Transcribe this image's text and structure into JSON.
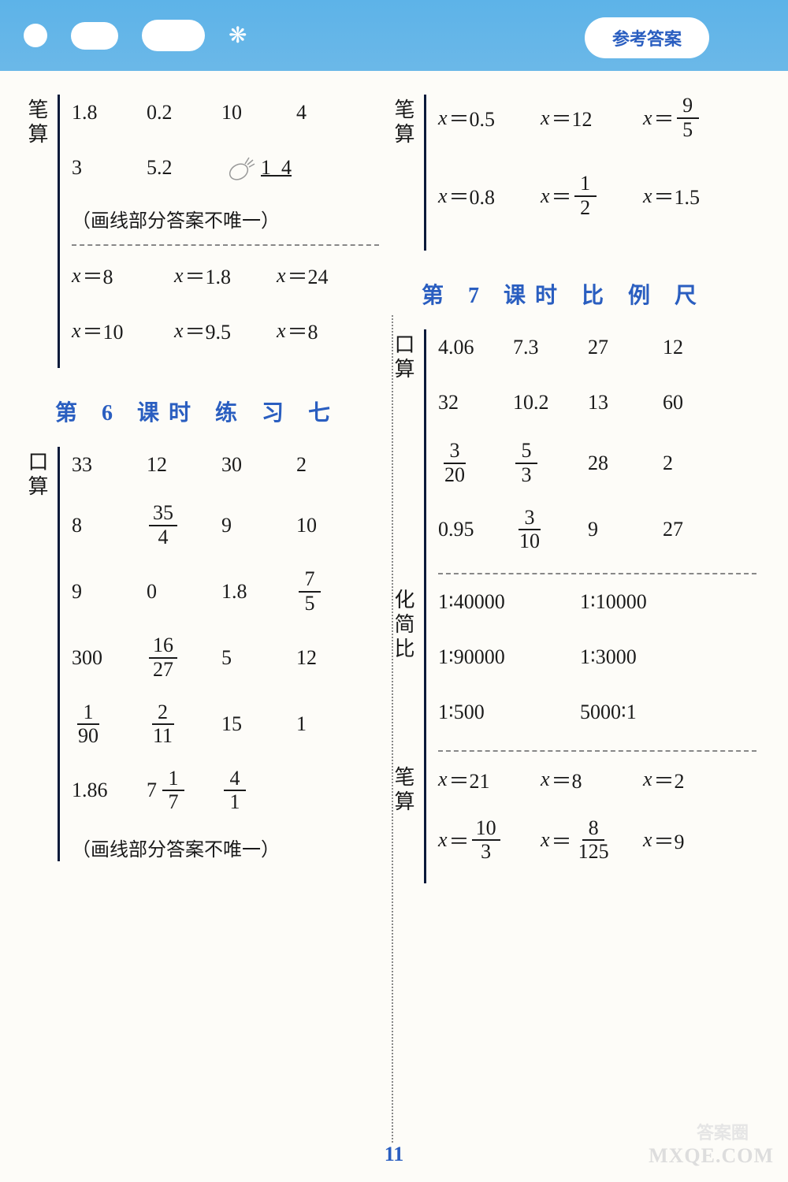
{
  "badge_text": "参考答案",
  "page_number": "11",
  "watermark1": "答案圈",
  "watermark2": "MXQE.COM",
  "left": {
    "top_block": {
      "side": "笔算",
      "rows1": [
        [
          "1.8",
          "0.2",
          "10",
          "4"
        ],
        [
          "3",
          "5.2",
          "1",
          "4"
        ]
      ],
      "note1": "（画线部分答案不唯一）",
      "rows2": [
        [
          "x＝8",
          "x＝1.8",
          "x＝24"
        ],
        [
          "x＝10",
          "x＝9.5",
          "x＝8"
        ]
      ]
    },
    "lesson6": {
      "title": "第 6 课时   练  习  七",
      "side": "口算",
      "rows": [
        [
          "33",
          "12",
          "30",
          "2"
        ],
        [
          "8",
          {
            "f": [
              "35",
              "4"
            ]
          },
          "9",
          "10"
        ],
        [
          "9",
          "0",
          "1.8",
          {
            "f": [
              "7",
              "5"
            ]
          }
        ],
        [
          "300",
          {
            "f": [
              "16",
              "27"
            ]
          },
          "5",
          "12"
        ],
        [
          {
            "f": [
              "1",
              "90"
            ]
          },
          {
            "f": [
              "2",
              "11"
            ]
          },
          "15",
          "1"
        ],
        [
          "1.86",
          {
            "m": [
              "7",
              "1",
              "7"
            ]
          },
          {
            "f": [
              "4",
              "1"
            ]
          },
          ""
        ]
      ],
      "note": "（画线部分答案不唯一）"
    }
  },
  "right": {
    "top_block": {
      "side": "笔算",
      "rows": [
        [
          {
            "eq": "x＝0.5"
          },
          {
            "eq": "x＝12"
          },
          {
            "eqf": [
              "x＝",
              "9",
              "5"
            ]
          }
        ],
        [
          {
            "eq": "x＝0.8"
          },
          {
            "eqf": [
              "x＝",
              "1",
              "2"
            ]
          },
          {
            "eq": "x＝1.5"
          }
        ]
      ]
    },
    "lesson7": {
      "title": "第 7 课时   比  例  尺",
      "kousuan_side": "口算",
      "kousuan_rows": [
        [
          "4.06",
          "7.3",
          "27",
          "12"
        ],
        [
          "32",
          "10.2",
          "13",
          "60"
        ],
        [
          {
            "f": [
              "3",
              "20"
            ]
          },
          {
            "f": [
              "5",
              "3"
            ]
          },
          "28",
          "2"
        ],
        [
          "0.95",
          {
            "f": [
              "3",
              "10"
            ]
          },
          "9",
          "27"
        ]
      ],
      "huajian_side": "化简比",
      "huajian_rows": [
        [
          "1∶40000",
          "1∶10000"
        ],
        [
          "1∶90000",
          "1∶3000"
        ],
        [
          "1∶500",
          "5000∶1"
        ]
      ],
      "bisuan_side": "笔算",
      "bisuan_rows": [
        [
          {
            "eq": "x＝21"
          },
          {
            "eq": "x＝8"
          },
          {
            "eq": "x＝2"
          }
        ],
        [
          {
            "eqf": [
              "x＝",
              "10",
              "3"
            ]
          },
          {
            "eqf": [
              "x＝",
              "8",
              "125"
            ]
          },
          {
            "eq": "x＝9"
          }
        ]
      ]
    }
  }
}
